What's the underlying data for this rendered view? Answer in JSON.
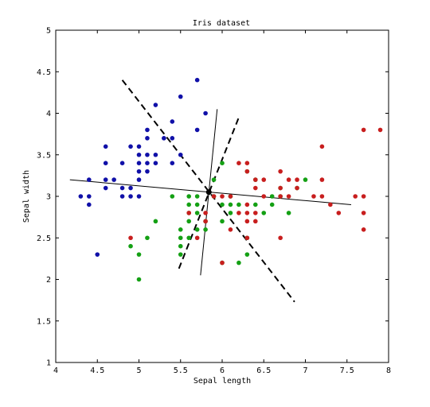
{
  "chart_data": {
    "type": "scatter",
    "title": "Iris dataset",
    "xlabel": "Sepal length",
    "ylabel": "Sepal width",
    "xlim": [
      4,
      8
    ],
    "ylim": [
      1,
      5
    ],
    "xticks": [
      4,
      4.5,
      5,
      5.5,
      6,
      6.5,
      7,
      7.5,
      8
    ],
    "xtick_labels": [
      "4",
      "4.5",
      "5",
      "5.5",
      "6",
      "6.5",
      "7",
      "7.5",
      "8"
    ],
    "yticks": [
      1,
      1.5,
      2,
      2.5,
      3,
      3.5,
      4,
      4.5,
      5
    ],
    "ytick_labels": [
      "1",
      "1.5",
      "2",
      "2.5",
      "3",
      "3.5",
      "4",
      "4.5",
      "5"
    ],
    "grid": false,
    "legend": "none",
    "series": [
      {
        "color": "#1010a8",
        "points": [
          [
            4.3,
            3.0
          ],
          [
            4.4,
            2.9
          ],
          [
            4.4,
            3.0
          ],
          [
            4.4,
            3.2
          ],
          [
            4.5,
            2.3
          ],
          [
            4.6,
            3.1
          ],
          [
            4.6,
            3.2
          ],
          [
            4.6,
            3.4
          ],
          [
            4.6,
            3.6
          ],
          [
            4.7,
            3.2
          ],
          [
            4.8,
            3.0
          ],
          [
            4.8,
            3.1
          ],
          [
            4.8,
            3.4
          ],
          [
            4.9,
            3.0
          ],
          [
            4.9,
            3.1
          ],
          [
            4.9,
            3.6
          ],
          [
            5.0,
            3.0
          ],
          [
            5.0,
            3.2
          ],
          [
            5.0,
            3.3
          ],
          [
            5.0,
            3.4
          ],
          [
            5.0,
            3.5
          ],
          [
            5.0,
            3.6
          ],
          [
            5.1,
            3.3
          ],
          [
            5.1,
            3.4
          ],
          [
            5.1,
            3.5
          ],
          [
            5.1,
            3.7
          ],
          [
            5.1,
            3.8
          ],
          [
            5.2,
            3.4
          ],
          [
            5.2,
            3.5
          ],
          [
            5.2,
            4.1
          ],
          [
            5.3,
            3.7
          ],
          [
            5.4,
            3.4
          ],
          [
            5.4,
            3.7
          ],
          [
            5.4,
            3.9
          ],
          [
            5.5,
            3.5
          ],
          [
            5.5,
            4.2
          ],
          [
            5.7,
            3.8
          ],
          [
            5.7,
            4.4
          ],
          [
            5.8,
            4.0
          ]
        ]
      },
      {
        "color": "#14a014",
        "points": [
          [
            4.9,
            2.4
          ],
          [
            5.0,
            2.0
          ],
          [
            5.0,
            2.3
          ],
          [
            5.1,
            2.5
          ],
          [
            5.2,
            2.7
          ],
          [
            5.4,
            3.0
          ],
          [
            5.5,
            2.3
          ],
          [
            5.5,
            2.4
          ],
          [
            5.5,
            2.5
          ],
          [
            5.5,
            2.6
          ],
          [
            5.6,
            2.5
          ],
          [
            5.6,
            2.7
          ],
          [
            5.6,
            2.8
          ],
          [
            5.6,
            2.9
          ],
          [
            5.6,
            3.0
          ],
          [
            5.7,
            2.6
          ],
          [
            5.7,
            2.8
          ],
          [
            5.7,
            2.9
          ],
          [
            5.7,
            3.0
          ],
          [
            5.8,
            2.6
          ],
          [
            5.8,
            2.7
          ],
          [
            5.9,
            3.0
          ],
          [
            5.9,
            3.2
          ],
          [
            6.0,
            2.2
          ],
          [
            6.0,
            2.7
          ],
          [
            6.0,
            2.9
          ],
          [
            6.0,
            3.4
          ],
          [
            6.1,
            2.8
          ],
          [
            6.1,
            2.9
          ],
          [
            6.1,
            3.0
          ],
          [
            6.2,
            2.2
          ],
          [
            6.2,
            2.9
          ],
          [
            6.3,
            2.3
          ],
          [
            6.3,
            2.5
          ],
          [
            6.3,
            3.3
          ],
          [
            6.4,
            2.9
          ],
          [
            6.4,
            3.2
          ],
          [
            6.5,
            2.8
          ],
          [
            6.6,
            2.9
          ],
          [
            6.6,
            3.0
          ],
          [
            6.7,
            3.0
          ],
          [
            6.7,
            3.1
          ],
          [
            6.8,
            2.8
          ],
          [
            6.9,
            3.1
          ],
          [
            7.0,
            3.2
          ]
        ]
      },
      {
        "color": "#c81e1e",
        "points": [
          [
            4.9,
            2.5
          ],
          [
            5.6,
            2.8
          ],
          [
            5.7,
            2.5
          ],
          [
            5.8,
            2.7
          ],
          [
            5.8,
            2.8
          ],
          [
            5.9,
            3.0
          ],
          [
            6.0,
            2.2
          ],
          [
            6.0,
            3.0
          ],
          [
            6.1,
            2.6
          ],
          [
            6.1,
            3.0
          ],
          [
            6.2,
            2.8
          ],
          [
            6.2,
            3.4
          ],
          [
            6.3,
            2.5
          ],
          [
            6.3,
            2.7
          ],
          [
            6.3,
            2.8
          ],
          [
            6.3,
            2.9
          ],
          [
            6.3,
            3.3
          ],
          [
            6.3,
            3.4
          ],
          [
            6.4,
            2.7
          ],
          [
            6.4,
            2.8
          ],
          [
            6.4,
            3.1
          ],
          [
            6.4,
            3.2
          ],
          [
            6.5,
            3.0
          ],
          [
            6.5,
            3.2
          ],
          [
            6.7,
            2.5
          ],
          [
            6.7,
            3.0
          ],
          [
            6.7,
            3.1
          ],
          [
            6.7,
            3.3
          ],
          [
            6.8,
            3.0
          ],
          [
            6.8,
            3.2
          ],
          [
            6.9,
            3.1
          ],
          [
            6.9,
            3.2
          ],
          [
            7.1,
            3.0
          ],
          [
            7.2,
            3.0
          ],
          [
            7.2,
            3.2
          ],
          [
            7.2,
            3.6
          ],
          [
            7.3,
            2.9
          ],
          [
            7.4,
            2.8
          ],
          [
            7.6,
            3.0
          ],
          [
            7.7,
            2.6
          ],
          [
            7.7,
            2.8
          ],
          [
            7.7,
            3.0
          ],
          [
            7.7,
            3.8
          ],
          [
            7.9,
            3.8
          ]
        ]
      }
    ],
    "lines": [
      {
        "style": "solid",
        "from": [
          4.17,
          3.2
        ],
        "to": [
          7.55,
          2.9
        ]
      },
      {
        "style": "solid",
        "from": [
          5.74,
          2.05
        ],
        "to": [
          5.94,
          4.05
        ]
      },
      {
        "style": "dashed",
        "from": [
          4.8,
          4.4
        ],
        "to": [
          6.87,
          1.73
        ]
      },
      {
        "style": "dashed",
        "from": [
          5.48,
          2.13
        ],
        "to": [
          6.2,
          3.95
        ]
      }
    ],
    "center": {
      "x": 5.84,
      "y": 3.05,
      "color": "#000000"
    }
  }
}
